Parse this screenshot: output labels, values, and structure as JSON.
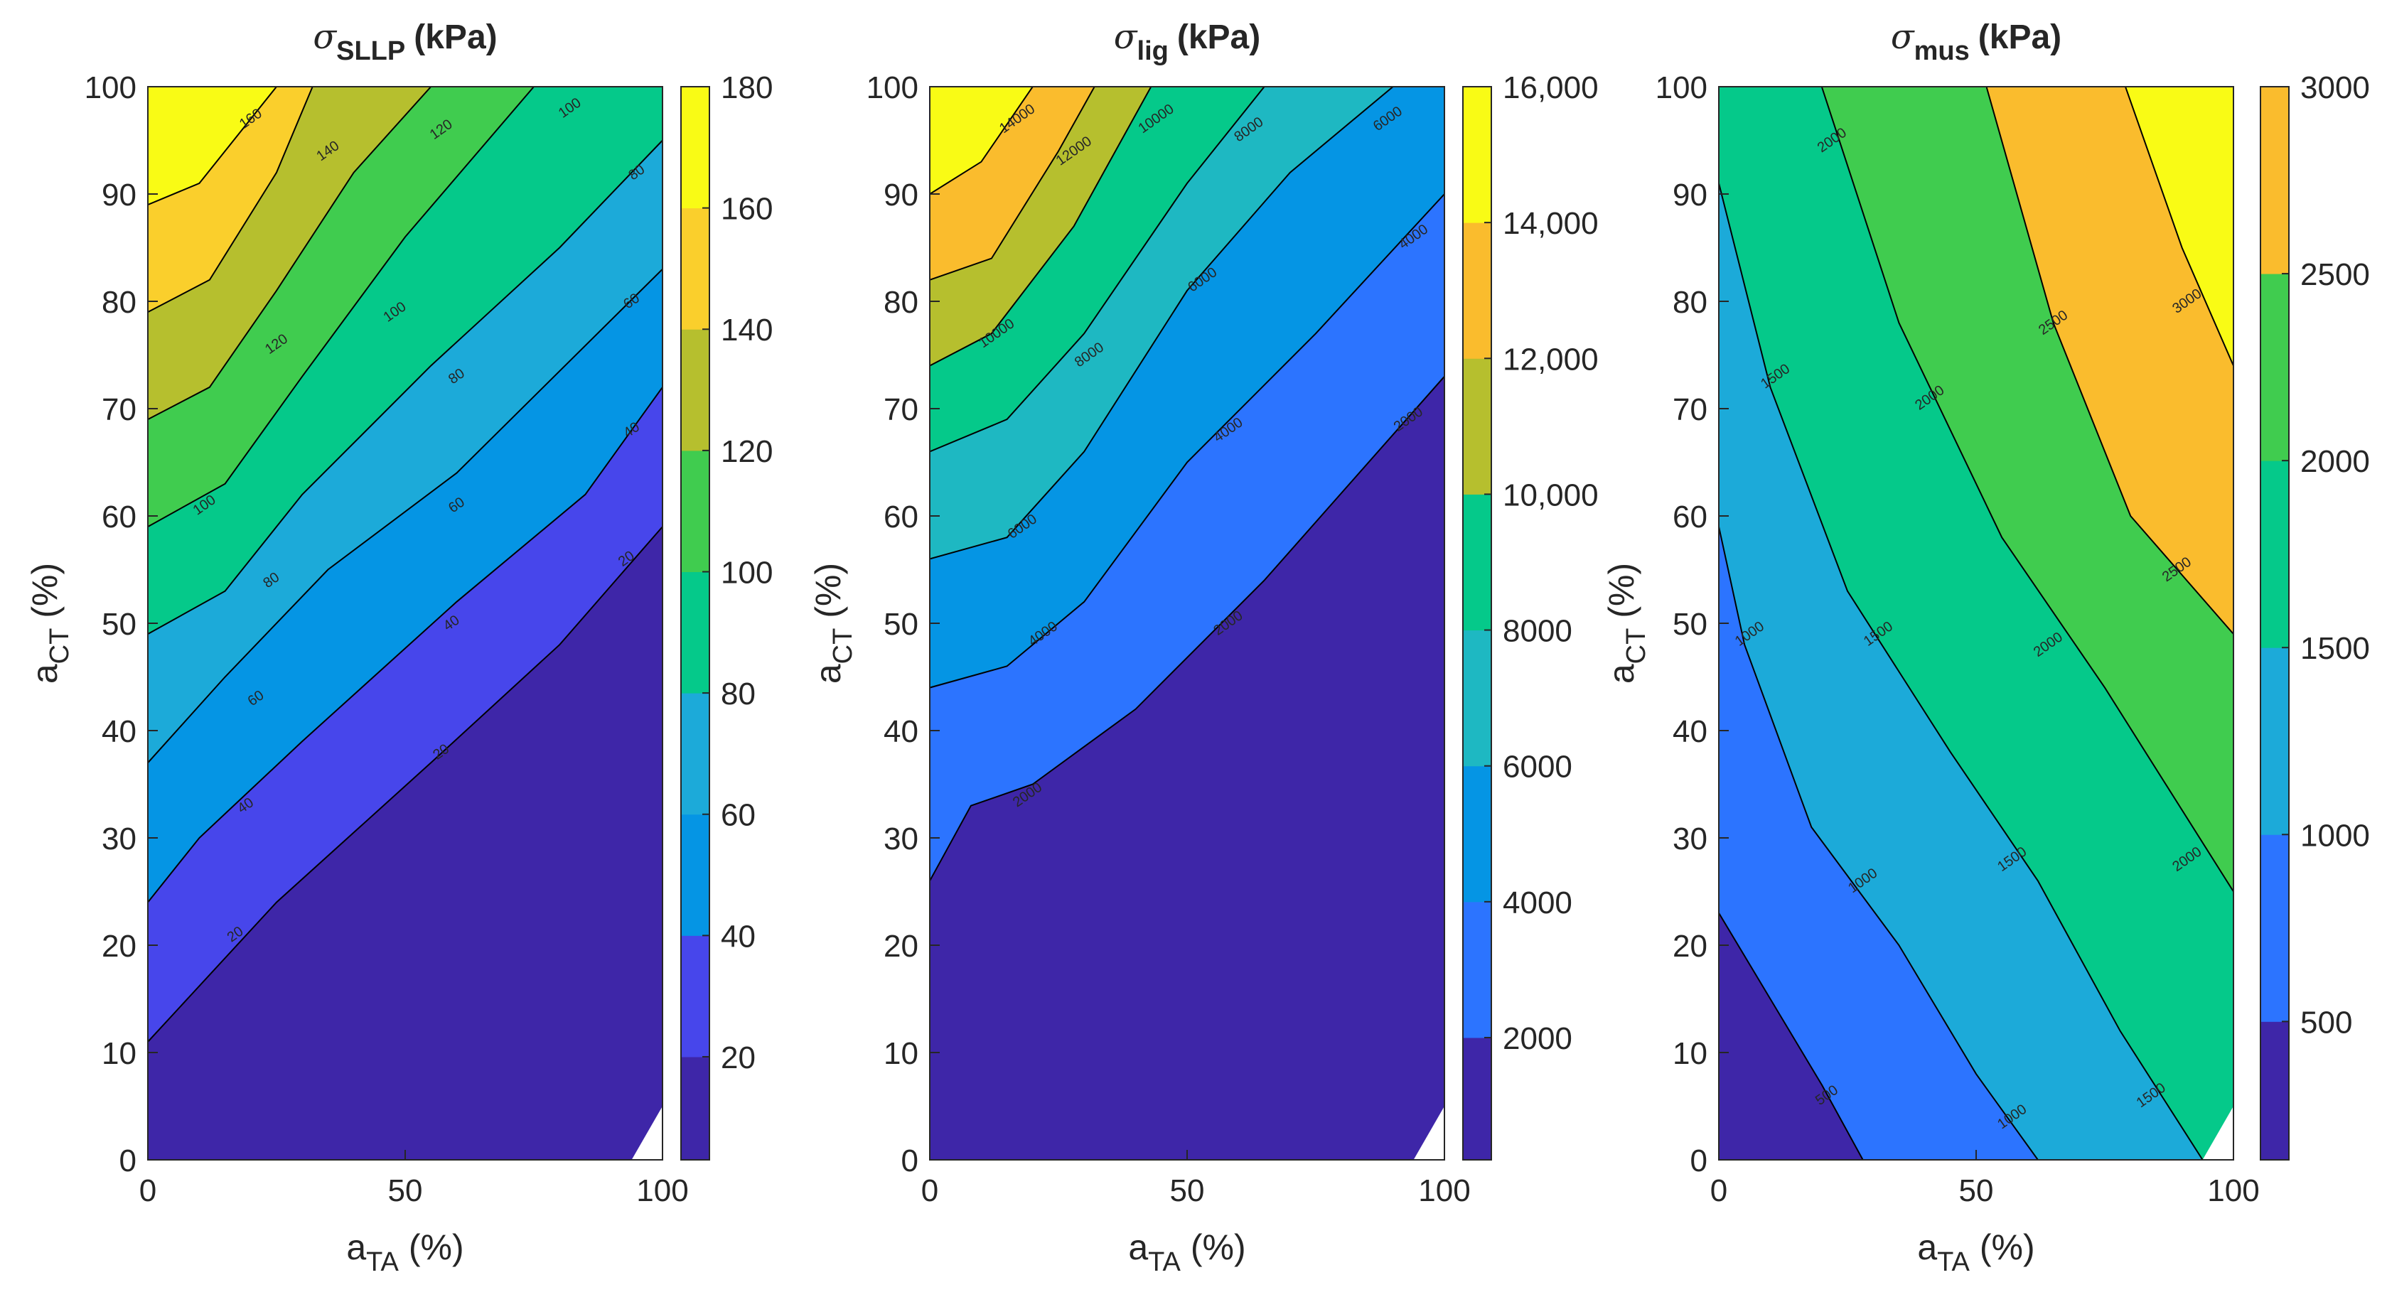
{
  "figure": {
    "x_axis_label": {
      "main": "a",
      "sub": "TA",
      "unit": "(%)"
    },
    "y_axis_label": {
      "main": "a",
      "sub": "CT",
      "unit": "(%)"
    },
    "x_ticks": [
      0,
      50,
      100
    ],
    "y_ticks": [
      0,
      10,
      20,
      30,
      40,
      50,
      60,
      70,
      80,
      90,
      100
    ]
  },
  "colors": {
    "band_colors": [
      "#3E26A8",
      "#4746EB",
      "#2C74FF",
      "#0595E4",
      "#1CAAD9",
      "#1EB8C2",
      "#05C98A",
      "#40CC4F",
      "#B6BF2E",
      "#FABC2D",
      "#FACF2C",
      "#F9FB15"
    ],
    "contour_line": "#000000",
    "axis_line": "#262626"
  },
  "chart_data": [
    {
      "type": "contour",
      "title": {
        "symbol": "σ",
        "sub": "SLLP",
        "unit": "(kPa)"
      },
      "xlabel": "a_TA (%)",
      "ylabel": "a_CT (%)",
      "xlim": [
        0,
        100
      ],
      "ylim": [
        0,
        100
      ],
      "contour_levels": [
        20,
        40,
        60,
        80,
        100,
        120,
        140,
        160
      ],
      "contour_lines": [
        {
          "level": 20,
          "points": [
            [
              0,
              11
            ],
            [
              25,
              24
            ],
            [
              55,
              37
            ],
            [
              80,
              48
            ],
            [
              100,
              59
            ]
          ]
        },
        {
          "level": 40,
          "points": [
            [
              0,
              24
            ],
            [
              10,
              30
            ],
            [
              30,
              39
            ],
            [
              60,
              52
            ],
            [
              85,
              62
            ],
            [
              100,
              72
            ]
          ]
        },
        {
          "level": 60,
          "points": [
            [
              0,
              37
            ],
            [
              15,
              45
            ],
            [
              35,
              55
            ],
            [
              60,
              64
            ],
            [
              100,
              83
            ]
          ]
        },
        {
          "level": 80,
          "points": [
            [
              0,
              49
            ],
            [
              15,
              53
            ],
            [
              30,
              62
            ],
            [
              55,
              74
            ],
            [
              80,
              85
            ],
            [
              100,
              95
            ]
          ]
        },
        {
          "level": 100,
          "points": [
            [
              0,
              59
            ],
            [
              15,
              63
            ],
            [
              30,
              73
            ],
            [
              50,
              86
            ],
            [
              75,
              100
            ]
          ]
        },
        {
          "level": 120,
          "points": [
            [
              0,
              69
            ],
            [
              12,
              72
            ],
            [
              25,
              81
            ],
            [
              40,
              92
            ],
            [
              55,
              100
            ]
          ]
        },
        {
          "level": 140,
          "points": [
            [
              0,
              79
            ],
            [
              12,
              82
            ],
            [
              25,
              92
            ],
            [
              32,
              100
            ]
          ]
        },
        {
          "level": 160,
          "points": [
            [
              0,
              89
            ],
            [
              10,
              91
            ],
            [
              20,
              97
            ],
            [
              25,
              100
            ]
          ]
        }
      ],
      "contour_label_positions": [
        {
          "text": "20",
          "at": [
            17,
            21
          ]
        },
        {
          "text": "20",
          "at": [
            57,
            38
          ]
        },
        {
          "text": "20",
          "at": [
            93,
            56
          ]
        },
        {
          "text": "40",
          "at": [
            19,
            33
          ]
        },
        {
          "text": "40",
          "at": [
            59,
            50
          ]
        },
        {
          "text": "40",
          "at": [
            94,
            68
          ]
        },
        {
          "text": "60",
          "at": [
            21,
            43
          ]
        },
        {
          "text": "60",
          "at": [
            60,
            61
          ]
        },
        {
          "text": "60",
          "at": [
            94,
            80
          ]
        },
        {
          "text": "80",
          "at": [
            24,
            54
          ]
        },
        {
          "text": "80",
          "at": [
            60,
            73
          ]
        },
        {
          "text": "80",
          "at": [
            95,
            92
          ]
        },
        {
          "text": "100",
          "at": [
            11,
            61
          ]
        },
        {
          "text": "100",
          "at": [
            48,
            79
          ]
        },
        {
          "text": "100",
          "at": [
            82,
            98
          ]
        },
        {
          "text": "120",
          "at": [
            25,
            76
          ]
        },
        {
          "text": "120",
          "at": [
            57,
            96
          ]
        },
        {
          "text": "140",
          "at": [
            35,
            94
          ]
        },
        {
          "text": "160",
          "at": [
            20,
            97
          ]
        }
      ],
      "colorbar": {
        "range": [
          3,
          180
        ],
        "ticks": [
          20,
          40,
          60,
          80,
          100,
          120,
          140,
          160,
          180
        ],
        "tick_labels": [
          "20",
          "40",
          "60",
          "80",
          "100",
          "120",
          "140",
          "160",
          "180"
        ]
      }
    },
    {
      "type": "contour",
      "title": {
        "symbol": "σ",
        "sub": "lig",
        "unit": "(kPa)"
      },
      "xlabel": "a_TA (%)",
      "ylabel": "a_CT (%)",
      "xlim": [
        0,
        100
      ],
      "ylim": [
        0,
        100
      ],
      "contour_levels": [
        2000,
        4000,
        6000,
        8000,
        10000,
        12000,
        14000
      ],
      "contour_lines": [
        {
          "level": 2000,
          "points": [
            [
              0,
              26
            ],
            [
              8,
              33
            ],
            [
              20,
              35
            ],
            [
              40,
              42
            ],
            [
              65,
              54
            ],
            [
              100,
              73
            ]
          ]
        },
        {
          "level": 4000,
          "points": [
            [
              0,
              44
            ],
            [
              15,
              46
            ],
            [
              30,
              52
            ],
            [
              50,
              65
            ],
            [
              75,
              77
            ],
            [
              100,
              90
            ]
          ]
        },
        {
          "level": 6000,
          "points": [
            [
              0,
              56
            ],
            [
              15,
              58
            ],
            [
              30,
              66
            ],
            [
              50,
              81
            ],
            [
              70,
              92
            ],
            [
              90,
              100
            ]
          ]
        },
        {
          "level": 8000,
          "points": [
            [
              0,
              66
            ],
            [
              15,
              69
            ],
            [
              30,
              77
            ],
            [
              50,
              91
            ],
            [
              65,
              100
            ]
          ]
        },
        {
          "level": 10000,
          "points": [
            [
              0,
              74
            ],
            [
              12,
              77
            ],
            [
              28,
              87
            ],
            [
              43,
              100
            ]
          ]
        },
        {
          "level": 12000,
          "points": [
            [
              0,
              82
            ],
            [
              12,
              84
            ],
            [
              25,
              94
            ],
            [
              32,
              100
            ]
          ]
        },
        {
          "level": 14000,
          "points": [
            [
              0,
              90
            ],
            [
              10,
              93
            ],
            [
              20,
              100
            ]
          ]
        }
      ],
      "contour_label_positions": [
        {
          "text": "2000",
          "at": [
            19,
            34
          ]
        },
        {
          "text": "2000",
          "at": [
            58,
            50
          ]
        },
        {
          "text": "2000",
          "at": [
            93,
            69
          ]
        },
        {
          "text": "4000",
          "at": [
            22,
            49
          ]
        },
        {
          "text": "4000",
          "at": [
            58,
            68
          ]
        },
        {
          "text": "4000",
          "at": [
            94,
            86
          ]
        },
        {
          "text": "6000",
          "at": [
            18,
            59
          ]
        },
        {
          "text": "6000",
          "at": [
            53,
            82
          ]
        },
        {
          "text": "6000",
          "at": [
            89,
            97
          ]
        },
        {
          "text": "8000",
          "at": [
            31,
            75
          ]
        },
        {
          "text": "8000",
          "at": [
            62,
            96
          ]
        },
        {
          "text": "10000",
          "at": [
            13,
            77
          ]
        },
        {
          "text": "10000",
          "at": [
            44,
            97
          ]
        },
        {
          "text": "12000",
          "at": [
            28,
            94
          ]
        },
        {
          "text": "14000",
          "at": [
            17,
            97
          ]
        }
      ],
      "colorbar": {
        "range": [
          200,
          16000
        ],
        "ticks": [
          2000,
          4000,
          6000,
          8000,
          10000,
          12000,
          14000,
          16000
        ],
        "tick_labels": [
          "2000",
          "4000",
          "6000",
          "8000",
          "10,000",
          "12,000",
          "14,000",
          "16,000"
        ]
      }
    },
    {
      "type": "contour",
      "title": {
        "symbol": "σ",
        "sub": "mus",
        "unit": "(kPa)"
      },
      "xlabel": "a_TA (%)",
      "ylabel": "a_CT (%)",
      "xlim": [
        0,
        100
      ],
      "ylim": [
        0,
        100
      ],
      "contour_levels": [
        500,
        1000,
        1500,
        2000,
        2500,
        3000
      ],
      "contour_lines": [
        {
          "level": 500,
          "points": [
            [
              0,
              23
            ],
            [
              10,
              15
            ],
            [
              20,
              7
            ],
            [
              28,
              0
            ]
          ]
        },
        {
          "level": 1000,
          "points": [
            [
              0,
              59
            ],
            [
              5,
              48
            ],
            [
              18,
              31
            ],
            [
              35,
              20
            ],
            [
              50,
              8
            ],
            [
              62,
              0
            ]
          ]
        },
        {
          "level": 1500,
          "points": [
            [
              0,
              91
            ],
            [
              10,
              72
            ],
            [
              25,
              53
            ],
            [
              45,
              38
            ],
            [
              62,
              26
            ],
            [
              78,
              12
            ],
            [
              94,
              0
            ]
          ]
        },
        {
          "level": 2000,
          "points": [
            [
              20,
              100
            ],
            [
              35,
              78
            ],
            [
              55,
              58
            ],
            [
              75,
              44
            ],
            [
              100,
              25
            ]
          ]
        },
        {
          "level": 2500,
          "points": [
            [
              52,
              100
            ],
            [
              65,
              78
            ],
            [
              80,
              60
            ],
            [
              100,
              49
            ]
          ]
        },
        {
          "level": 3000,
          "points": [
            [
              79,
              100
            ],
            [
              90,
              85
            ],
            [
              100,
              74
            ]
          ]
        }
      ],
      "contour_label_positions": [
        {
          "text": "500",
          "at": [
            21,
            6
          ]
        },
        {
          "text": "1000",
          "at": [
            6,
            49
          ]
        },
        {
          "text": "1000",
          "at": [
            28,
            26
          ]
        },
        {
          "text": "1000",
          "at": [
            57,
            4
          ]
        },
        {
          "text": "1500",
          "at": [
            11,
            73
          ]
        },
        {
          "text": "1500",
          "at": [
            31,
            49
          ]
        },
        {
          "text": "1500",
          "at": [
            57,
            28
          ]
        },
        {
          "text": "1500",
          "at": [
            84,
            6
          ]
        },
        {
          "text": "2000",
          "at": [
            22,
            95
          ]
        },
        {
          "text": "2000",
          "at": [
            41,
            71
          ]
        },
        {
          "text": "2000",
          "at": [
            64,
            48
          ]
        },
        {
          "text": "2000",
          "at": [
            91,
            28
          ]
        },
        {
          "text": "2500",
          "at": [
            65,
            78
          ]
        },
        {
          "text": "2500",
          "at": [
            89,
            55
          ]
        },
        {
          "text": "3000",
          "at": [
            91,
            80
          ]
        }
      ],
      "colorbar": {
        "range": [
          130,
          3000
        ],
        "ticks": [
          500,
          1000,
          1500,
          2000,
          2500,
          3000
        ],
        "tick_labels": [
          "500",
          "1000",
          "1500",
          "2000",
          "2500",
          "3000"
        ]
      }
    }
  ]
}
